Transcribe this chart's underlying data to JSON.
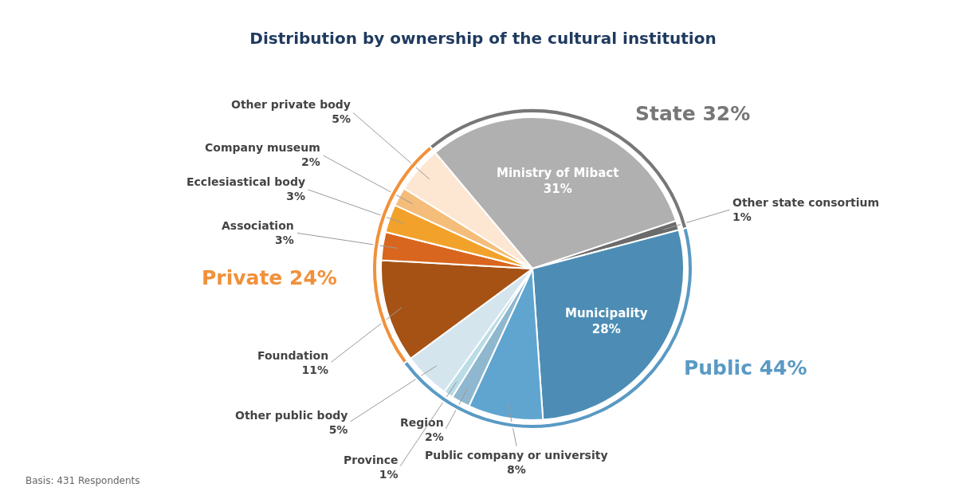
{
  "chart_data": [
    {
      "type": "pie",
      "title": "Distribution by ownership of the cultural institution",
      "categories": [
        "Ministry of Mibact",
        "Other state consortium",
        "Municipality",
        "Public company or university",
        "Region",
        "Province",
        "Other public body",
        "Foundation",
        "Association",
        "Ecclesiastical body",
        "Company museum",
        "Other private body"
      ],
      "values": [
        31,
        1,
        28,
        8,
        2,
        1,
        5,
        11,
        3,
        3,
        2,
        5
      ],
      "value_labels": [
        "31%",
        "1%",
        "28%",
        "8%",
        "2%",
        "1%",
        "5%",
        "11%",
        "3%",
        "3%",
        "2%",
        "5%"
      ],
      "colors": [
        "#b0b0b0",
        "#6b6b6b",
        "#4d8db5",
        "#5fa5d0",
        "#8fb7cf",
        "#b9dce6",
        "#d5e5ee",
        "#a65214",
        "#d9661e",
        "#f2a22a",
        "#f5bd7a",
        "#fde7d3"
      ],
      "annotations": [
        "Basis: 431 Respondents"
      ]
    },
    {
      "type": "donut",
      "categories": [
        "State 32%",
        "Public 44%",
        "Private 24%"
      ],
      "values": [
        32,
        44,
        24
      ],
      "colors": [
        "#777777",
        "#5a9ac4",
        "#f0913b"
      ]
    }
  ]
}
